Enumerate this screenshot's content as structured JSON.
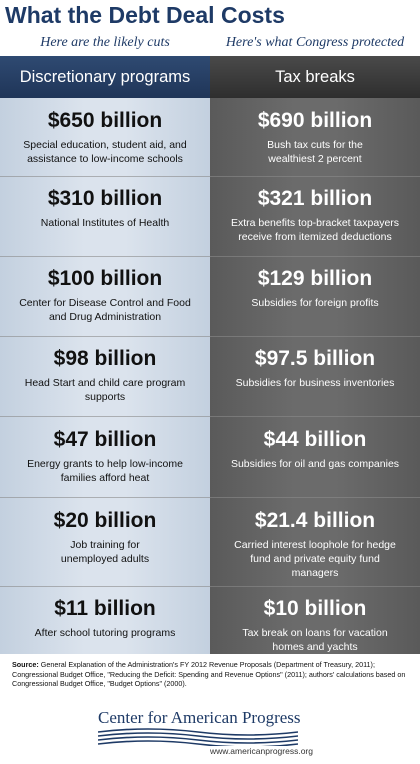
{
  "title": "What the Debt Deal Costs",
  "subheads": {
    "left": "Here are the likely cuts",
    "right": "Here's what Congress protected"
  },
  "columns": {
    "left": "Discretionary programs",
    "right": "Tax breaks"
  },
  "rows": [
    {
      "left_amount": "$650 billion",
      "left_desc": "Special education, student aid, and assistance to low-income schools",
      "right_amount": "$690 billion",
      "right_desc": "Bush tax cuts for the wealthiest 2 percent"
    },
    {
      "left_amount": "$310 billion",
      "left_desc": "National Institutes of Health",
      "right_amount": "$321 billion",
      "right_desc": "Extra benefits top-bracket taxpayers receive from itemized deductions"
    },
    {
      "left_amount": "$100 billion",
      "left_desc": "Center for Disease Control and Food and Drug Administration",
      "right_amount": "$129 billion",
      "right_desc": "Subsidies for foreign profits"
    },
    {
      "left_amount": "$98 billion",
      "left_desc": "Head Start and child care program supports",
      "right_amount": "$97.5 billion",
      "right_desc": "Subsidies for business inventories"
    },
    {
      "left_amount": "$47 billion",
      "left_desc": "Energy grants to help low-income families afford heat",
      "right_amount": "$44 billion",
      "right_desc": "Subsidies for oil and gas companies"
    },
    {
      "left_amount": "$20 billion",
      "left_desc": "Job training for unemployed adults",
      "right_amount": "$21.4 billion",
      "right_desc": "Carried interest loophole for hedge fund and private equity fund managers"
    },
    {
      "left_amount": "$11 billion",
      "left_desc": "After school tutoring programs",
      "right_amount": "$10 billion",
      "right_desc": "Tax break on loans for vacation homes and yachts"
    }
  ],
  "source": {
    "label": "Source:",
    "text": "General Explanation of the Administration's FY 2012 Revenue Proposals (Department of Treasury, 2011); Congressional Budget Office, \"Reducing the Deficit: Spending and Revenue Options\" (2011); authors' calculations based on Congressional Budget Office, \"Budget Options\" (2000)."
  },
  "logo": {
    "name": "Center for American Progress",
    "url": "www.americanprogress.org"
  }
}
